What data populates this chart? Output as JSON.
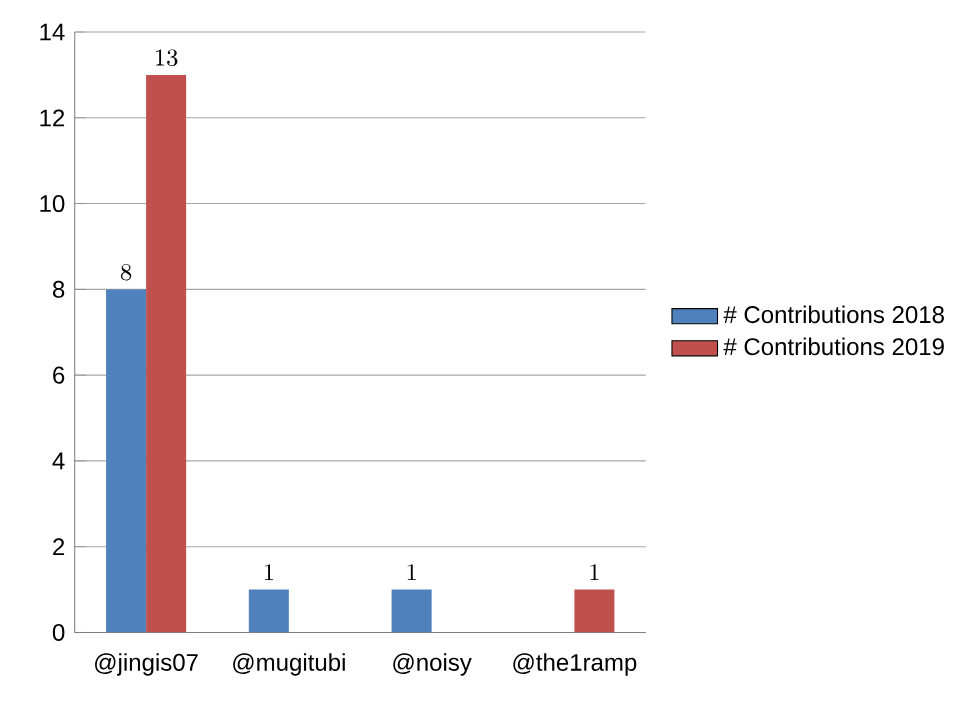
{
  "chart_data": {
    "type": "bar",
    "categories": [
      "@jingis07",
      "@mugitubi",
      "@noisy",
      "@the1ramp"
    ],
    "series": [
      {
        "name": "# Contributions 2018",
        "color": "#4f81bd",
        "values": [
          8,
          1,
          1,
          null
        ]
      },
      {
        "name": "# Contributions 2019",
        "color": "#c0504d",
        "values": [
          13,
          null,
          null,
          1
        ]
      }
    ],
    "ylim": [
      0,
      14
    ],
    "yticks": [
      0,
      2,
      4,
      6,
      8,
      10,
      12,
      14
    ],
    "grid": "y",
    "legend": "right",
    "data_labels": true
  }
}
